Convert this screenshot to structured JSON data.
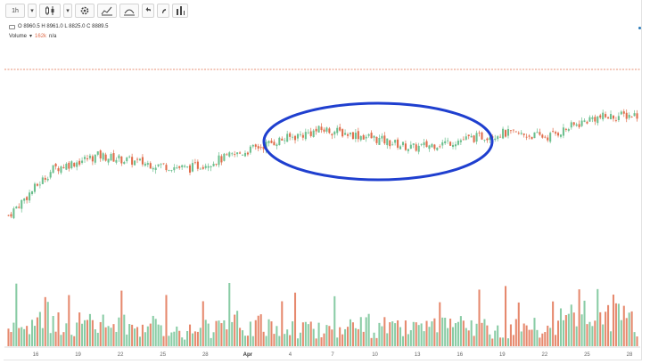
{
  "toolbar": {
    "interval": "1h",
    "interval_caret": "▾",
    "chart_style_caret": "▾",
    "icons": [
      "chart-type-icon",
      "settings-icon",
      "indicators-icon",
      "compare-icon",
      "undo-icon",
      "redo-icon",
      "bars-icon"
    ]
  },
  "legend": {
    "ohlc": "O 8960.5  H 8961.0  L 8825.0  C 8889.5",
    "volume_label": "Volume",
    "volume_value": "162k",
    "volume_change": "n/a"
  },
  "colors": {
    "up": "#6bbf8e",
    "down": "#e06c4a",
    "highlight_ellipse": "#1f3fcf",
    "price_line": "#e06c4a"
  },
  "x_axis": {
    "labels": [
      "16",
      "19",
      "22",
      "25",
      "28",
      "Apr",
      "4",
      "7",
      "10",
      "13",
      "16",
      "19",
      "22",
      "25",
      "28"
    ]
  },
  "chart_data": {
    "type": "candlestick",
    "description_level": "price rises from a low near the 16th, consolidates through Apr 4-16 (circled), then climbs to the highest levels by the 25th-28th",
    "x": [
      "16",
      "19",
      "22",
      "25",
      "28",
      "Apr",
      "4",
      "7",
      "10",
      "13",
      "16",
      "19",
      "22",
      "25",
      "28"
    ],
    "close_trend": [
      0.3,
      0.55,
      0.62,
      0.58,
      0.55,
      0.62,
      0.7,
      0.76,
      0.72,
      0.66,
      0.7,
      0.74,
      0.72,
      0.82,
      0.84
    ],
    "volume_trend": [
      0.35,
      0.45,
      0.4,
      0.38,
      0.3,
      0.42,
      0.35,
      0.32,
      0.38,
      0.3,
      0.36,
      0.34,
      0.33,
      0.8,
      0.4
    ]
  }
}
